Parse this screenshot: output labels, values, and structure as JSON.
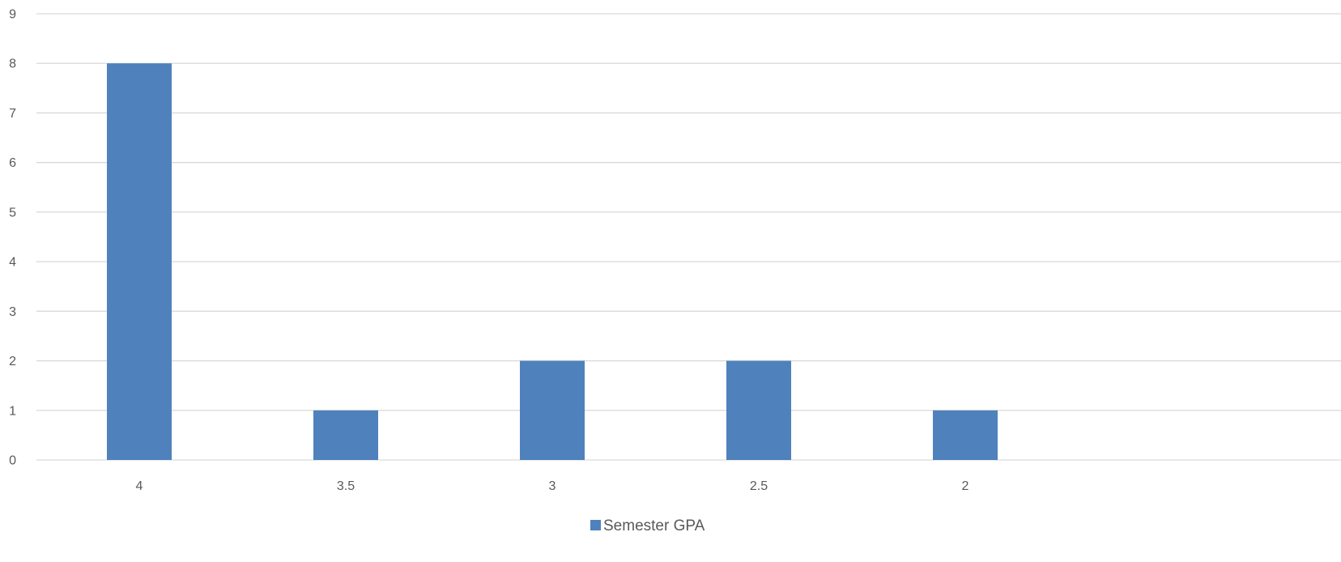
{
  "chart_data": {
    "type": "bar",
    "categories": [
      "4",
      "3.5",
      "3",
      "2.5",
      "2"
    ],
    "series": [
      {
        "name": "Semester GPA",
        "values": [
          8,
          1,
          2,
          2,
          1
        ],
        "color": "#4f81bd"
      }
    ],
    "title": "",
    "xlabel": "",
    "ylabel": "",
    "ylim": [
      0,
      9
    ],
    "yticks": [
      "0",
      "1",
      "2",
      "3",
      "4",
      "5",
      "6",
      "7",
      "8",
      "9"
    ],
    "grid": true,
    "legend_position": "bottom"
  }
}
